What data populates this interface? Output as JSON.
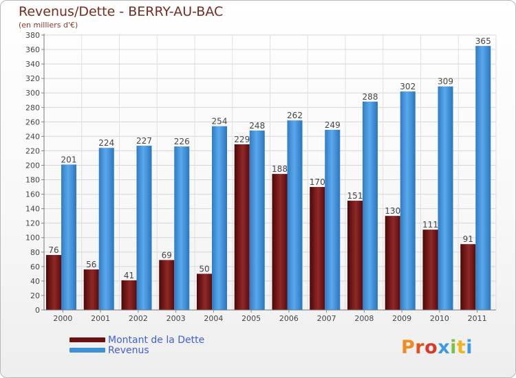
{
  "chart_data": {
    "type": "bar",
    "title": "Revenus/Dette - BERRY-AU-BAC",
    "subtitle": "(en milliers d'€)",
    "categories": [
      "2000",
      "2001",
      "2002",
      "2003",
      "2004",
      "2005",
      "2006",
      "2007",
      "2008",
      "2009",
      "2010",
      "2011"
    ],
    "series": [
      {
        "name": "Montant de la Dette",
        "color": "#7a1a1a",
        "values": [
          76,
          56,
          41,
          69,
          50,
          229,
          188,
          170,
          151,
          130,
          111,
          91
        ]
      },
      {
        "name": "Revenus",
        "color": "#3d8fd8",
        "values": [
          201,
          224,
          227,
          226,
          254,
          248,
          262,
          249,
          288,
          302,
          309,
          365
        ]
      }
    ],
    "ylim": [
      0,
      380
    ],
    "ytick_step": 20,
    "grid": true,
    "legend_position": "bottom-left"
  },
  "brand": {
    "letters": [
      {
        "ch": "P",
        "color": "#f08c1e"
      },
      {
        "ch": "r",
        "color": "#e0531a"
      },
      {
        "ch": "o",
        "color": "#d83a2a"
      },
      {
        "ch": "x",
        "color": "#3b9be0"
      },
      {
        "ch": "i",
        "color": "#7cc242"
      },
      {
        "ch": "t",
        "color": "#f2b21e"
      },
      {
        "ch": "i",
        "color": "#3b9be0"
      }
    ]
  }
}
